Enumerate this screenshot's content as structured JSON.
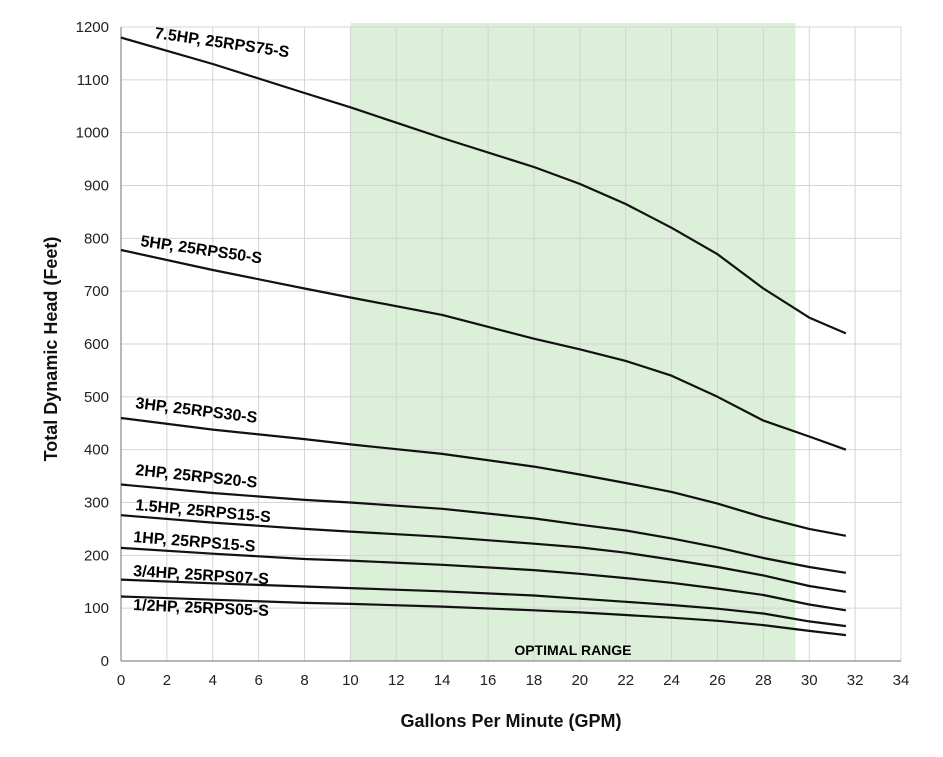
{
  "chart_data": {
    "type": "line",
    "title": "",
    "xlabel": "Gallons Per Minute (GPM)",
    "ylabel": "Total Dynamic Head (Feet)",
    "xlim": [
      0,
      34
    ],
    "ylim": [
      0,
      1200
    ],
    "x_ticks": [
      0,
      2,
      4,
      6,
      8,
      10,
      12,
      14,
      16,
      18,
      20,
      22,
      24,
      26,
      28,
      30,
      32,
      34
    ],
    "y_ticks": [
      0,
      100,
      200,
      300,
      400,
      500,
      600,
      700,
      800,
      900,
      1000,
      1100,
      1200
    ],
    "grid": true,
    "optimal_range": {
      "label": "OPTIMAL RANGE",
      "x_from": 10,
      "x_to": 29.4,
      "color": "#dcefd8"
    },
    "line_color": "#111111",
    "grid_color": "#d4d4d4",
    "series": [
      {
        "name": "7.5HP,  25RPS75-S",
        "x": [
          0,
          4,
          8,
          10,
          14,
          18,
          20,
          22,
          24,
          26,
          28,
          30,
          31.6
        ],
        "y": [
          1180,
          1130,
          1075,
          1048,
          990,
          935,
          903,
          865,
          820,
          770,
          705,
          650,
          620
        ]
      },
      {
        "name": "5HP,  25RPS50-S",
        "x": [
          0,
          4,
          8,
          10,
          14,
          18,
          20,
          22,
          24,
          26,
          28,
          30,
          31.6
        ],
        "y": [
          778,
          740,
          705,
          688,
          655,
          610,
          590,
          568,
          540,
          500,
          455,
          425,
          400
        ]
      },
      {
        "name": "3HP,  25RPS30-S",
        "x": [
          0,
          4,
          8,
          10,
          14,
          18,
          20,
          22,
          24,
          26,
          28,
          30,
          31.6
        ],
        "y": [
          460,
          438,
          420,
          410,
          392,
          368,
          353,
          337,
          320,
          298,
          272,
          250,
          237
        ]
      },
      {
        "name": "2HP, 25RPS20-S",
        "x": [
          0,
          4,
          8,
          10,
          14,
          18,
          20,
          22,
          24,
          26,
          28,
          30,
          31.6
        ],
        "y": [
          334,
          318,
          305,
          300,
          288,
          270,
          258,
          247,
          232,
          215,
          195,
          178,
          167
        ]
      },
      {
        "name": "1.5HP, 25RPS15-S",
        "x": [
          0,
          4,
          8,
          10,
          14,
          18,
          20,
          22,
          24,
          26,
          28,
          30,
          31.6
        ],
        "y": [
          276,
          262,
          250,
          245,
          235,
          222,
          215,
          205,
          192,
          178,
          162,
          142,
          131
        ]
      },
      {
        "name": "1HP, 25RPS15-S",
        "x": [
          0,
          4,
          8,
          10,
          14,
          18,
          20,
          22,
          24,
          26,
          28,
          30,
          31.6
        ],
        "y": [
          214,
          203,
          193,
          190,
          182,
          172,
          165,
          157,
          148,
          137,
          125,
          107,
          96
        ]
      },
      {
        "name": "3/4HP, 25RPS07-S",
        "x": [
          0,
          4,
          8,
          10,
          14,
          18,
          20,
          22,
          24,
          26,
          28,
          30,
          31.6
        ],
        "y": [
          154,
          147,
          141,
          138,
          132,
          124,
          118,
          112,
          106,
          99,
          90,
          75,
          66
        ]
      },
      {
        "name": "1/2HP, 25RPS05-S",
        "x": [
          0,
          4,
          8,
          10,
          14,
          18,
          20,
          22,
          24,
          26,
          28,
          30,
          31.6
        ],
        "y": [
          122,
          116,
          110,
          108,
          103,
          96,
          92,
          87,
          82,
          76,
          68,
          57,
          49
        ]
      }
    ]
  }
}
